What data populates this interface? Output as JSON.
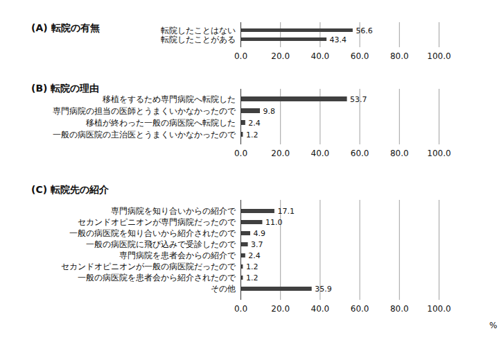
{
  "chart_data": [
    {
      "type": "bar",
      "title": "(A) 転院の有無",
      "orientation": "horizontal",
      "categories": [
        "転院したことはない",
        "転院したことがある"
      ],
      "values": [
        56.6,
        43.4
      ],
      "color": "#404040",
      "xlim": [
        0,
        100
      ],
      "xticks": [
        {
          "value": 0,
          "label": "0.0"
        },
        {
          "value": 20,
          "label": "20.0"
        },
        {
          "value": 40,
          "label": "40.0"
        },
        {
          "value": 60,
          "label": "60.0"
        },
        {
          "value": 80,
          "label": "80.0"
        },
        {
          "value": 100,
          "label": "100.0"
        }
      ],
      "grid": true,
      "data_labels": true
    },
    {
      "type": "bar",
      "title": "(B) 転院の理由",
      "orientation": "horizontal",
      "categories": [
        "移植をするため専門病院へ転院した",
        "専門病院の担当の医師とうまくいかなかったので",
        "移植が終わった一般の病医院へ転院した",
        "一般の病医院の主治医とうまくいかなかったので"
      ],
      "values": [
        53.7,
        9.8,
        2.4,
        1.2
      ],
      "color": "#404040",
      "xlim": [
        0,
        100
      ],
      "xticks": [
        {
          "value": 0,
          "label": "0.0"
        },
        {
          "value": 20,
          "label": "20.0"
        },
        {
          "value": 40,
          "label": "40.0"
        },
        {
          "value": 60,
          "label": "60.0"
        },
        {
          "value": 80,
          "label": "80.0"
        },
        {
          "value": 100,
          "label": "100.0"
        }
      ],
      "grid": true,
      "data_labels": true
    },
    {
      "type": "bar",
      "title": "(C) 転院先の紹介",
      "orientation": "horizontal",
      "categories": [
        "専門病院を知り合いからの紹介で",
        "セカンドオピニオンが専門病院だったので",
        "一般の病医院を知り合いから紹介されたので",
        "一般の病医院に飛び込みで受診したので",
        "専門病院を患者会からの紹介で",
        "セカンドオピニオンが一般の病医院だったので",
        "一般の病医院を患者会から紹介されたので",
        "その他"
      ],
      "values": [
        17.1,
        11.0,
        4.9,
        3.7,
        2.4,
        1.2,
        1.2,
        35.9
      ],
      "value_labels": [
        "17.1",
        "11.0",
        "4.9",
        "3.7",
        "2.4",
        "1.2",
        "1.2",
        "35.9"
      ],
      "color": "#404040",
      "x_label": "%",
      "xlim": [
        0,
        100
      ],
      "xticks": [
        {
          "value": 0,
          "label": "0.0"
        },
        {
          "value": 20,
          "label": "20.0"
        },
        {
          "value": 40,
          "label": "40.0"
        },
        {
          "value": 60,
          "label": "60.0"
        },
        {
          "value": 80,
          "label": "80.0"
        },
        {
          "value": 100,
          "label": "100.0"
        }
      ],
      "grid": true,
      "data_labels": true
    }
  ]
}
